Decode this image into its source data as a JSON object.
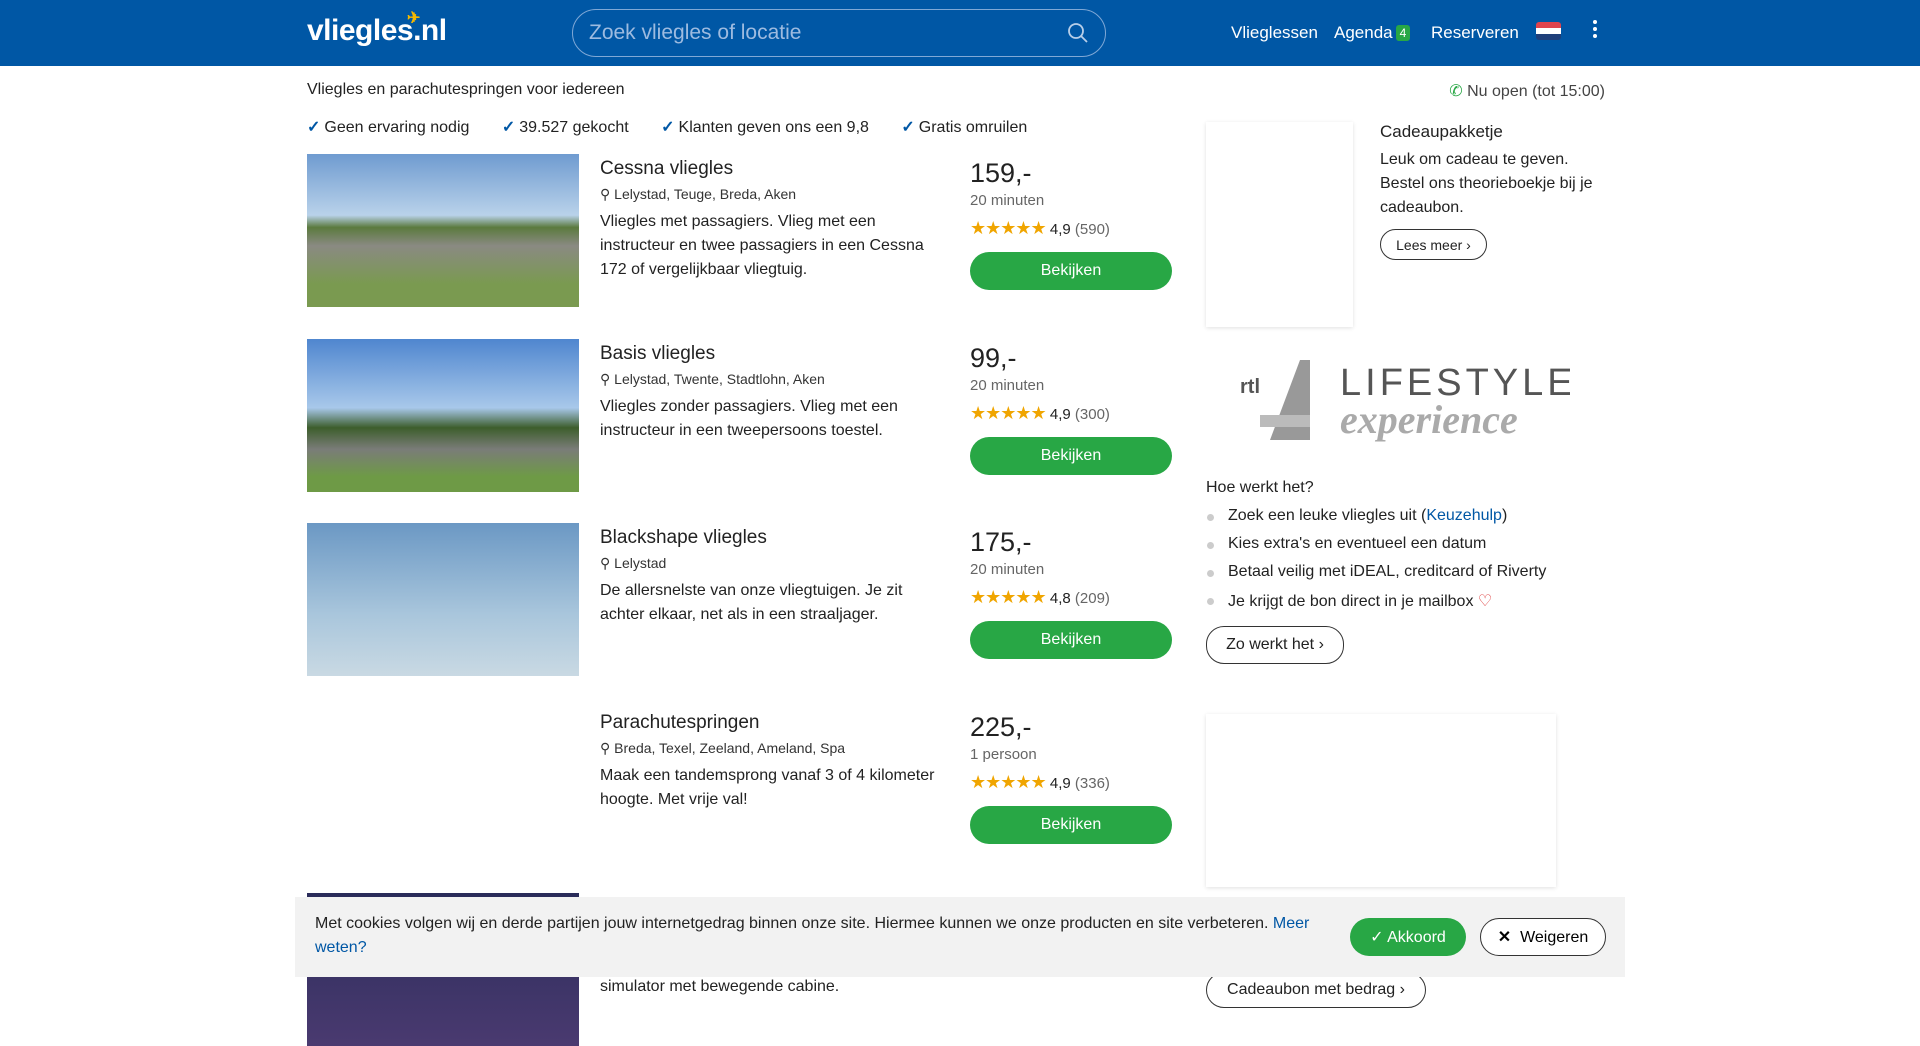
{
  "header": {
    "logo": "vlieglés.nl",
    "search_placeholder": "Zoek vliegles of locatie",
    "nav": [
      {
        "label": "Vlieglessen"
      },
      {
        "label": "Agenda",
        "badge": "4"
      },
      {
        "label": "Reserveren"
      }
    ],
    "language": "nl"
  },
  "tagline": "Vliegles en parachutespringen voor iedereen",
  "open_status": "Nu open (tot 15:00)",
  "usps": [
    "Geen ervaring nodig",
    "39.527 gekocht",
    "Klanten geven ons een 9,8",
    "Gratis omruilen"
  ],
  "products": [
    {
      "title": "Cessna vliegles",
      "locations": "Lelystad, Teuge, Breda, Aken",
      "description": "Vliegles met passagiers. Vlieg met een instructeur en twee passagiers in een Cessna 172 of vergelijkbaar vliegtuig.",
      "price": "159,-",
      "duration": "20 minuten",
      "rating": "4,9",
      "reviews": "(590)",
      "button": "Bekijken"
    },
    {
      "title": "Basis vliegles",
      "locations": "Lelystad, Twente, Stadtlohn, Aken",
      "description": "Vliegles zonder passagiers. Vlieg met een instructeur in een tweepersoons toestel.",
      "price": "99,-",
      "duration": "20 minuten",
      "rating": "4,9",
      "reviews": "(300)",
      "button": "Bekijken"
    },
    {
      "title": "Blackshape vliegles",
      "locations": "Lelystad",
      "description": "De allersnelste van onze vliegtuigen. Je zit achter elkaar, net als in een straaljager.",
      "price": "175,-",
      "duration": "20 minuten",
      "rating": "4,8",
      "reviews": "(209)",
      "button": "Bekijken"
    },
    {
      "title": "Parachutespringen",
      "locations": "Breda, Texel, Zeeland, Ameland, Spa",
      "description": "Maak een tandemsprong vanaf 3 of 4 kilometer hoogte. Met vrije val!",
      "price": "225,-",
      "duration": "1 persoon",
      "rating": "4,9",
      "reviews": "(336)",
      "button": "Bekijken"
    }
  ],
  "partial_product": {
    "description": "simulator met bewegende cabine."
  },
  "sidebar": {
    "gift_title": "Cadeaupakketje",
    "gift_text": "Leuk om cadeau te geven. Bestel ons theorieboekje bij je cadeaubon.",
    "gift_button": "Lees meer",
    "partner_logo": "rtl 4 LIFESTYLE experience",
    "how_title": "Hoe werkt het?",
    "how_steps": [
      "Zoek een leuke vliegles uit (",
      "Kies extra's en eventueel een datum",
      "Betaal veilig met iDEAL, creditcard of Riverty",
      "Je krijgt de bon direct in je mailbox"
    ],
    "how_link": "Keuzehulp",
    "how_button": "Zo werkt het",
    "voucher_button": "Cadeaubon met bedrag"
  },
  "cookie": {
    "text": "Met cookies volgen wij en derde partijen jouw internetgedrag binnen onze site. Hiermee kunnen we onze producten en site verbeteren. ",
    "link": "Meer weten?",
    "accept": "Akkoord",
    "reject": "Weigeren"
  },
  "colors": {
    "header": "#0057a5",
    "accent": "#28a745"
  }
}
